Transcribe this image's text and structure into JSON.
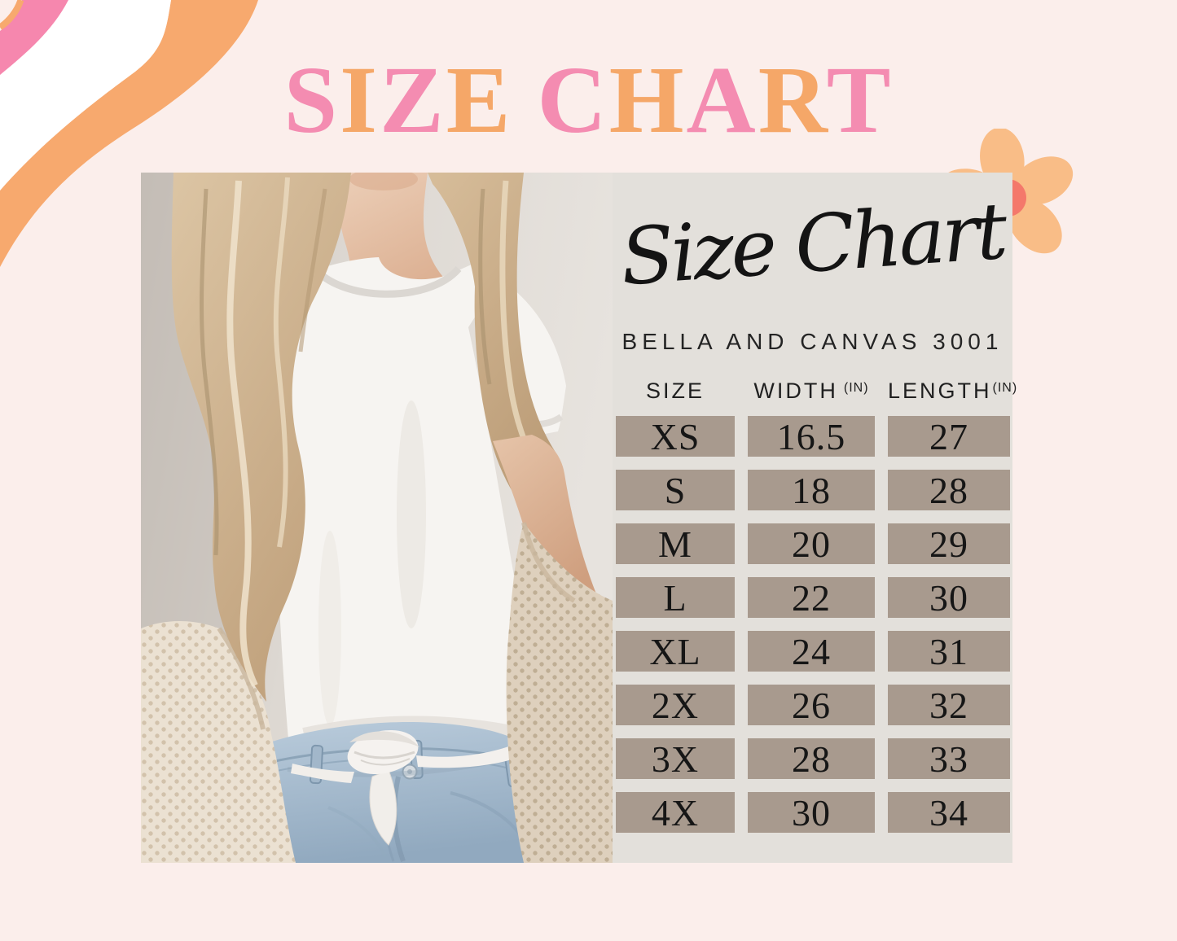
{
  "colors": {
    "bg": "#fbeeeb",
    "title_pink": "#f48cb1",
    "title_orange": "#f5a768",
    "panel": "#e3e0db",
    "taupe": "#a89a8e",
    "ink": "#1a1a1a",
    "swoosh_orange": "#f7a96e",
    "swoosh_pink": "#f687ae",
    "petal": "#f9bd87",
    "flower_center": "#f4786b"
  },
  "title": {
    "text": "SIZE CHART",
    "letters": [
      {
        "ch": "S",
        "color": "pink"
      },
      {
        "ch": "I",
        "color": "orange"
      },
      {
        "ch": "Z",
        "color": "pink"
      },
      {
        "ch": "E",
        "color": "orange"
      },
      {
        "ch": " "
      },
      {
        "ch": "C",
        "color": "pink"
      },
      {
        "ch": "H",
        "color": "orange"
      },
      {
        "ch": "A",
        "color": "pink"
      },
      {
        "ch": "R",
        "color": "orange"
      },
      {
        "ch": "T",
        "color": "pink"
      }
    ]
  },
  "panel": {
    "script_title": "Size Chart",
    "subtitle": "BELLA AND CANVAS 3001"
  },
  "photo": {
    "alt": "Model wearing a white crew-neck tee knotted at the waist, beige knit cardigan and light-wash jeans"
  },
  "icons": {
    "flower": "flower-icon",
    "corner_swoosh": "swoosh-icon"
  },
  "size_table": {
    "headers": {
      "size": "SIZE",
      "width": "WIDTH",
      "length": "LENGTH",
      "unit": "(IN)"
    },
    "rows": [
      {
        "size": "XS",
        "width": "16.5",
        "length": "27"
      },
      {
        "size": "S",
        "width": "18",
        "length": "28"
      },
      {
        "size": "M",
        "width": "20",
        "length": "29"
      },
      {
        "size": "L",
        "width": "22",
        "length": "30"
      },
      {
        "size": "XL",
        "width": "24",
        "length": "31"
      },
      {
        "size": "2X",
        "width": "26",
        "length": "32"
      },
      {
        "size": "3X",
        "width": "28",
        "length": "33"
      },
      {
        "size": "4X",
        "width": "30",
        "length": "34"
      }
    ]
  },
  "chart_data": {
    "type": "table",
    "title": "Size Chart",
    "subtitle": "BELLA AND CANVAS 3001",
    "columns": [
      "SIZE",
      "WIDTH (IN)",
      "LENGTH (IN)"
    ],
    "rows": [
      [
        "XS",
        16.5,
        27
      ],
      [
        "S",
        18,
        28
      ],
      [
        "M",
        20,
        29
      ],
      [
        "L",
        22,
        30
      ],
      [
        "XL",
        24,
        31
      ],
      [
        "2X",
        26,
        32
      ],
      [
        "3X",
        28,
        33
      ],
      [
        "4X",
        30,
        34
      ]
    ]
  }
}
